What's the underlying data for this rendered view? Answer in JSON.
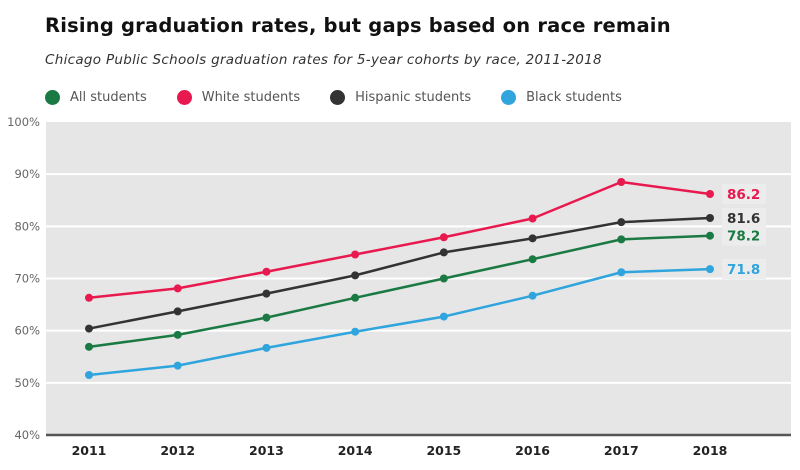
{
  "chart_data": {
    "type": "line",
    "title": "Rising graduation rates, but gaps based on race remain",
    "subtitle": "Chicago Public Schools graduation rates for 5-year cohorts by race, 2011-2018",
    "xlabel": "",
    "ylabel": "",
    "x": [
      "2011",
      "2012",
      "2013",
      "2014",
      "2015",
      "2016",
      "2017",
      "2018"
    ],
    "ylim": [
      40,
      100
    ],
    "yticks": [
      40,
      50,
      60,
      70,
      80,
      90,
      100
    ],
    "ytick_labels": [
      "40%",
      "50%",
      "60%",
      "70%",
      "80%",
      "90%",
      "100%"
    ],
    "grid": true,
    "legend_position": "top-left",
    "series": [
      {
        "name": "All students",
        "color": "#1b7a43",
        "values": [
          56.9,
          59.2,
          62.5,
          66.3,
          70.0,
          73.7,
          77.5,
          78.2
        ],
        "end_label": "78.2"
      },
      {
        "name": "White students",
        "color": "#e8194f",
        "values": [
          66.3,
          68.1,
          71.3,
          74.6,
          77.9,
          81.5,
          88.5,
          86.2
        ],
        "end_label": "86.2"
      },
      {
        "name": "Hispanic students",
        "color": "#333333",
        "values": [
          60.4,
          63.7,
          67.1,
          70.6,
          75.0,
          77.7,
          80.8,
          81.6
        ],
        "end_label": "81.6"
      },
      {
        "name": "Black students",
        "color": "#2fa4dd",
        "values": [
          51.5,
          53.3,
          56.7,
          59.8,
          62.7,
          66.7,
          71.2,
          71.8
        ],
        "end_label": "71.8"
      }
    ]
  }
}
